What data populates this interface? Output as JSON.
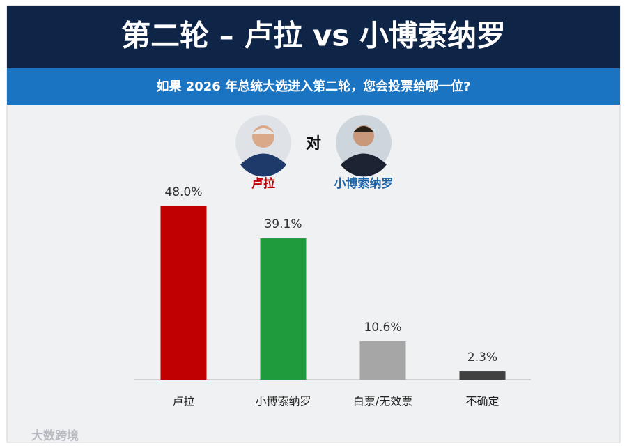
{
  "header": {
    "title": "第二轮 – 卢拉 vs 小博索纳罗",
    "subtitle": "如果 2026 年总统大选进入第二轮，您会投票给哪一位?"
  },
  "matchup": {
    "left": "卢拉",
    "versus": "对",
    "right": "小博索纳罗"
  },
  "chart_data": {
    "type": "bar",
    "categories": [
      "卢拉",
      "小博索纳罗",
      "白票/无效票",
      "不确定"
    ],
    "values": [
      48.0,
      39.1,
      10.6,
      2.3
    ],
    "value_labels": [
      "48.0%",
      "39.1%",
      "10.6%",
      "2.3%"
    ],
    "colors": [
      "#c00000",
      "#1f9a3d",
      "#a6a6a6",
      "#404040"
    ]
  },
  "watermark": "大数跨境"
}
